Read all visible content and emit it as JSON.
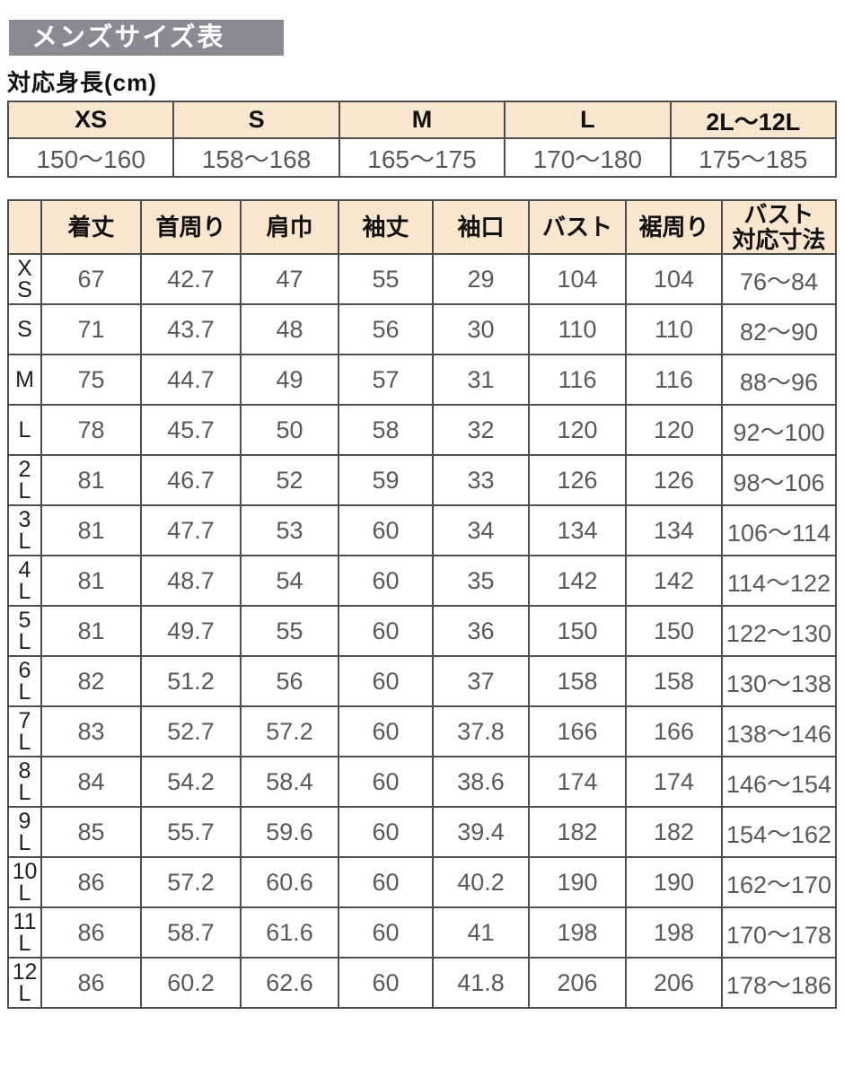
{
  "page": {
    "title": "メンズサイズ表",
    "subtitle": "対応身長(cm)"
  },
  "colors": {
    "title_bg": "#8c8992",
    "title_text": "#ffffff",
    "header_bg": "#f9e6cf",
    "border": "#4d4d4d",
    "value_text": "#595959",
    "label_text": "#111111"
  },
  "height_table": {
    "columns": [
      "XS",
      "S",
      "M",
      "L",
      "2L〜12L"
    ],
    "values": [
      "150〜160",
      "158〜168",
      "165〜175",
      "170〜180",
      "175〜185"
    ]
  },
  "size_table": {
    "corner": "",
    "columns": [
      "着丈",
      "首周り",
      "肩巾",
      "袖丈",
      "袖口",
      "バスト",
      "裾周り",
      "バスト\n対応寸法"
    ],
    "rows": [
      {
        "size": "X\nS",
        "values": [
          "67",
          "42.7",
          "47",
          "55",
          "29",
          "104",
          "104",
          "76〜84"
        ]
      },
      {
        "size": "S",
        "values": [
          "71",
          "43.7",
          "48",
          "56",
          "30",
          "110",
          "110",
          "82〜90"
        ]
      },
      {
        "size": "M",
        "values": [
          "75",
          "44.7",
          "49",
          "57",
          "31",
          "116",
          "116",
          "88〜96"
        ]
      },
      {
        "size": "L",
        "values": [
          "78",
          "45.7",
          "50",
          "58",
          "32",
          "120",
          "120",
          "92〜100"
        ]
      },
      {
        "size": "2\nL",
        "values": [
          "81",
          "46.7",
          "52",
          "59",
          "33",
          "126",
          "126",
          "98〜106"
        ]
      },
      {
        "size": "3\nL",
        "values": [
          "81",
          "47.7",
          "53",
          "60",
          "34",
          "134",
          "134",
          "106〜114"
        ]
      },
      {
        "size": "4\nL",
        "values": [
          "81",
          "48.7",
          "54",
          "60",
          "35",
          "142",
          "142",
          "114〜122"
        ]
      },
      {
        "size": "5\nL",
        "values": [
          "81",
          "49.7",
          "55",
          "60",
          "36",
          "150",
          "150",
          "122〜130"
        ]
      },
      {
        "size": "6\nL",
        "values": [
          "82",
          "51.2",
          "56",
          "60",
          "37",
          "158",
          "158",
          "130〜138"
        ]
      },
      {
        "size": "7\nL",
        "values": [
          "83",
          "52.7",
          "57.2",
          "60",
          "37.8",
          "166",
          "166",
          "138〜146"
        ]
      },
      {
        "size": "8\nL",
        "values": [
          "84",
          "54.2",
          "58.4",
          "60",
          "38.6",
          "174",
          "174",
          "146〜154"
        ]
      },
      {
        "size": "9\nL",
        "values": [
          "85",
          "55.7",
          "59.6",
          "60",
          "39.4",
          "182",
          "182",
          "154〜162"
        ]
      },
      {
        "size": "10\nL",
        "values": [
          "86",
          "57.2",
          "60.6",
          "60",
          "40.2",
          "190",
          "190",
          "162〜170"
        ]
      },
      {
        "size": "11\nL",
        "values": [
          "86",
          "58.7",
          "61.6",
          "60",
          "41",
          "198",
          "198",
          "170〜178"
        ]
      },
      {
        "size": "12\nL",
        "values": [
          "86",
          "60.2",
          "62.6",
          "60",
          "41.8",
          "206",
          "206",
          "178〜186"
        ]
      }
    ]
  }
}
